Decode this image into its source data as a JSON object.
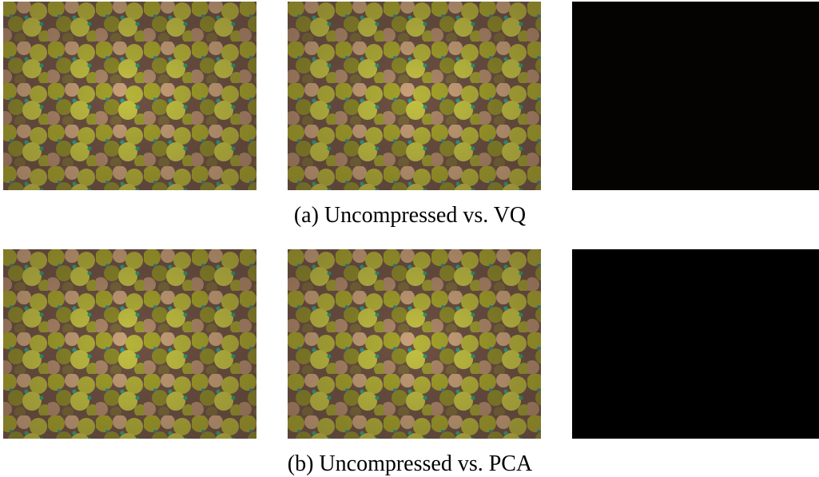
{
  "rows": [
    {
      "caption": "(a) Uncompressed vs. VQ"
    },
    {
      "caption": "(b) Uncompressed vs. PCA"
    }
  ]
}
